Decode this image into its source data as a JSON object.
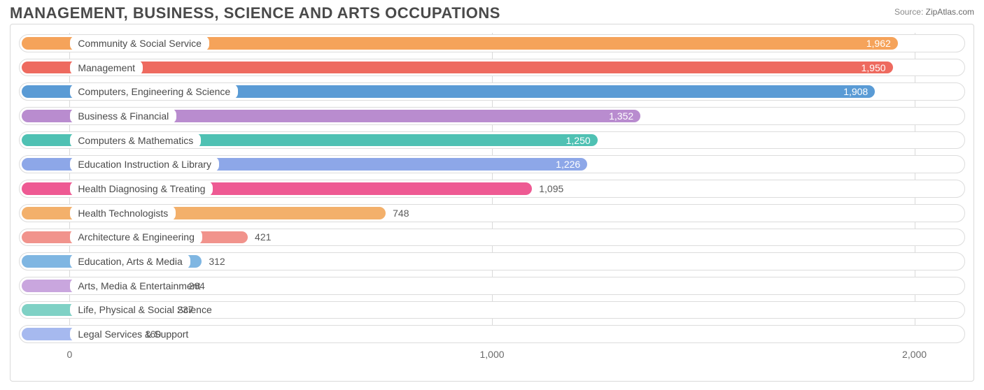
{
  "header": {
    "title": "MANAGEMENT, BUSINESS, SCIENCE AND ARTS OCCUPATIONS",
    "source_label": "Source:",
    "source_site": "ZipAtlas.com"
  },
  "chart": {
    "type": "bar-horizontal",
    "background_color": "#ffffff",
    "border_color": "#d9d9d9",
    "grid_color": "#d9d9d9",
    "track_border_color": "#dcdcdc",
    "track_bg": "#ffffff",
    "label_pill_bg": "#ffffff",
    "label_fontsize": 14,
    "title_fontsize": 22,
    "text_color": "#4a4a4a",
    "value_text_color": "#5a5a5a",
    "value_text_color_inside": "#ffffff",
    "x_axis": {
      "min": -120,
      "max": 2120,
      "ticks": [
        0,
        1000,
        2000
      ],
      "tick_labels": [
        "0",
        "1,000",
        "2,000"
      ]
    },
    "bars": [
      {
        "label": "Community & Social Service",
        "value": 1962,
        "value_label": "1,962",
        "color": "#f5a35a",
        "value_inside": true
      },
      {
        "label": "Management",
        "value": 1950,
        "value_label": "1,950",
        "color": "#ee6a5f",
        "value_inside": true
      },
      {
        "label": "Computers, Engineering & Science",
        "value": 1908,
        "value_label": "1,908",
        "color": "#5a9bd5",
        "value_inside": true
      },
      {
        "label": "Business & Financial",
        "value": 1352,
        "value_label": "1,352",
        "color": "#b98ccf",
        "value_inside": true
      },
      {
        "label": "Computers & Mathematics",
        "value": 1250,
        "value_label": "1,250",
        "color": "#4fc1b3",
        "value_inside": true
      },
      {
        "label": "Education Instruction & Library",
        "value": 1226,
        "value_label": "1,226",
        "color": "#8da7e8",
        "value_inside": true
      },
      {
        "label": "Health Diagnosing & Treating",
        "value": 1095,
        "value_label": "1,095",
        "color": "#ee5a93",
        "value_inside": false
      },
      {
        "label": "Health Technologists",
        "value": 748,
        "value_label": "748",
        "color": "#f3b06b",
        "value_inside": false
      },
      {
        "label": "Architecture & Engineering",
        "value": 421,
        "value_label": "421",
        "color": "#f1938c",
        "value_inside": false
      },
      {
        "label": "Education, Arts & Media",
        "value": 312,
        "value_label": "312",
        "color": "#7fb6e2",
        "value_inside": false
      },
      {
        "label": "Arts, Media & Entertainment",
        "value": 264,
        "value_label": "264",
        "color": "#c9a6de",
        "value_inside": false
      },
      {
        "label": "Life, Physical & Social Science",
        "value": 237,
        "value_label": "237",
        "color": "#7fd1c5",
        "value_inside": false
      },
      {
        "label": "Legal Services & Support",
        "value": 160,
        "value_label": "160",
        "color": "#a6b9ef",
        "value_inside": false
      }
    ]
  }
}
